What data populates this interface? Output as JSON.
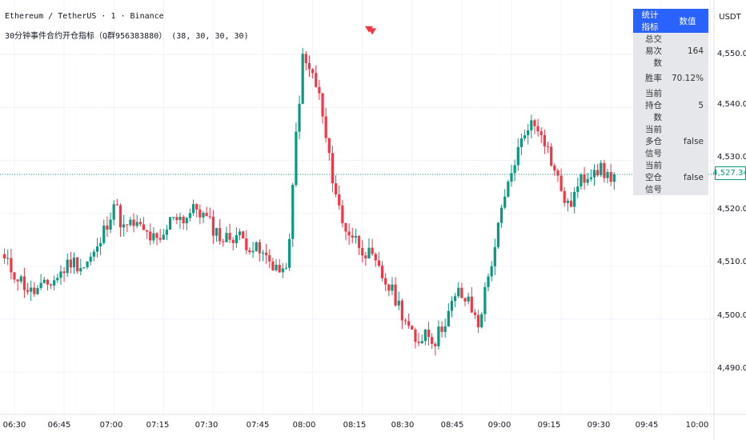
{
  "header": {
    "symbol_line": "Ethereum / TetherUS · 1 · Binance",
    "indicator_line": "30分钟事件合约开仓指标（Q群956383880） (38, 30, 30, 30)"
  },
  "stats_table": {
    "header_key": "统计指标",
    "header_value": "数值",
    "rows": [
      {
        "k": "总交易次数",
        "v": "164"
      },
      {
        "k": "胜率",
        "v": "70.12%"
      },
      {
        "k": "当前持仓数",
        "v": "5"
      },
      {
        "k": "当前多仓信号",
        "v": "false"
      },
      {
        "k": "当前空仓信号",
        "v": "false"
      }
    ]
  },
  "price_axis": {
    "currency": "USDT",
    "ticks": [
      "4,550.00",
      "4,540.00",
      "4,530.00",
      "4,520.00",
      "4,510.00",
      "4,500.00",
      "4,490.00"
    ],
    "last_price": "4,527.34"
  },
  "time_axis": {
    "ticks": [
      "06:30",
      "06:45",
      "07:00",
      "07:15",
      "07:30",
      "07:45",
      "08:00",
      "08:15",
      "08:30",
      "08:45",
      "09:00",
      "09:15",
      "09:30",
      "09:45",
      "10:00"
    ]
  },
  "colors": {
    "up": "#089981",
    "down": "#f23645",
    "signal": "#f23645",
    "table_header": "#2962ff"
  },
  "chart_data": {
    "type": "candlestick",
    "title": "Ethereum / TetherUS · 1 · Binance",
    "ylim": [
      4485,
      4560
    ],
    "x_range": [
      "06:27",
      "10:07"
    ],
    "yticks": [
      4550,
      4540,
      4530,
      4520,
      4510,
      4500,
      4490
    ],
    "xticks": [
      "06:30",
      "06:45",
      "07:00",
      "07:15",
      "07:30",
      "07:45",
      "08:00",
      "08:15",
      "08:30",
      "08:45",
      "09:00",
      "09:15",
      "09:30",
      "09:45",
      "10:00"
    ],
    "close_path": [
      [
        0,
        4511
      ],
      [
        4,
        4508
      ],
      [
        8,
        4505
      ],
      [
        12,
        4506
      ],
      [
        16,
        4508
      ],
      [
        20,
        4511
      ],
      [
        24,
        4510
      ],
      [
        28,
        4513
      ],
      [
        33,
        4522
      ],
      [
        36,
        4517
      ],
      [
        39,
        4518
      ],
      [
        43,
        4516
      ],
      [
        47,
        4514
      ],
      [
        51,
        4520
      ],
      [
        54,
        4519
      ],
      [
        58,
        4521
      ],
      [
        62,
        4518
      ],
      [
        66,
        4515
      ],
      [
        70,
        4516
      ],
      [
        74,
        4514
      ],
      [
        78,
        4512
      ],
      [
        82,
        4510
      ],
      [
        84,
        4508
      ],
      [
        86,
        4514
      ],
      [
        88,
        4535
      ],
      [
        90,
        4549
      ],
      [
        93,
        4546
      ],
      [
        95,
        4542
      ],
      [
        98,
        4530
      ],
      [
        102,
        4518
      ],
      [
        106,
        4515
      ],
      [
        110,
        4512
      ],
      [
        114,
        4508
      ],
      [
        118,
        4504
      ],
      [
        121,
        4500
      ],
      [
        124,
        4495
      ],
      [
        127,
        4498
      ],
      [
        130,
        4496
      ],
      [
        133,
        4500
      ],
      [
        137,
        4505
      ],
      [
        140,
        4503
      ],
      [
        143,
        4499
      ],
      [
        146,
        4508
      ],
      [
        150,
        4520
      ],
      [
        154,
        4530
      ],
      [
        158,
        4537
      ],
      [
        162,
        4536
      ],
      [
        166,
        4528
      ],
      [
        170,
        4521
      ],
      [
        174,
        4526
      ],
      [
        178,
        4529
      ],
      [
        182,
        4527
      ],
      [
        184,
        4527.34
      ]
    ],
    "signals": [
      {
        "type": "sell",
        "time": "08:17",
        "price": 4552
      },
      {
        "type": "sell",
        "time": "08:18",
        "price": 4551
      }
    ],
    "last_price": 4527.34,
    "currency": "USDT"
  }
}
